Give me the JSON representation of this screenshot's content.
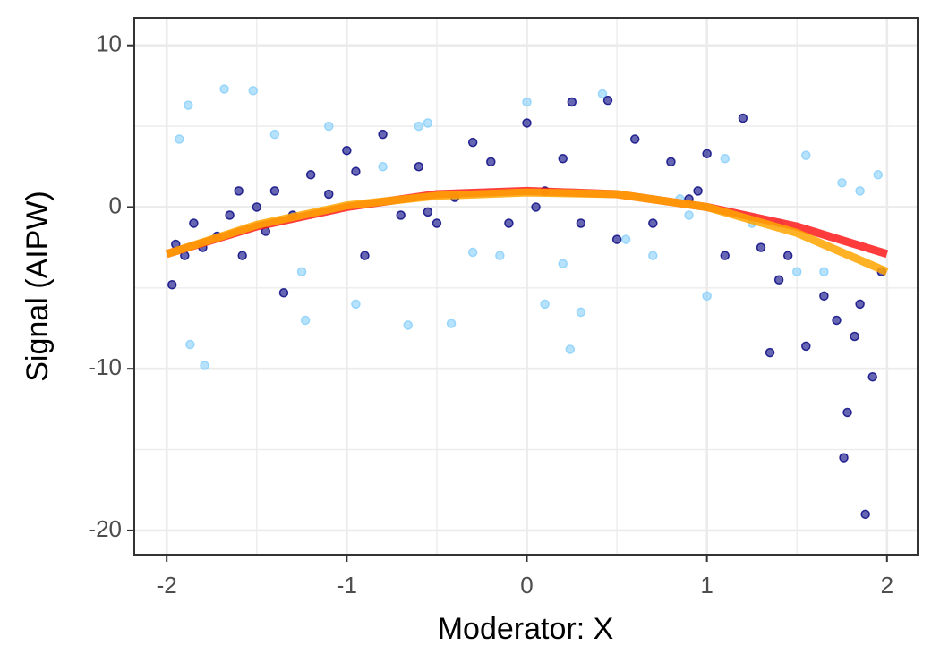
{
  "chart_data": {
    "type": "scatter",
    "xlabel": "Moderator: X",
    "ylabel": "Signal (AIPW)",
    "xlim": [
      -2.18,
      2.17
    ],
    "ylim": [
      -21.5,
      11.7
    ],
    "xticks": [
      -2,
      -1,
      0,
      1,
      2
    ],
    "yticks": [
      -20,
      -10,
      0,
      10
    ],
    "x_minor_grid": [
      -1.5,
      -0.5,
      0.5,
      1.5
    ],
    "y_minor_grid": [
      -15,
      -5,
      5
    ],
    "grid": true,
    "series": [
      {
        "type": "scatter",
        "color": "#87cefa",
        "x": [
          -1.93,
          -1.87,
          -1.79,
          -1.68,
          -1.52,
          -1.4,
          -1.23,
          -1.1,
          -0.95,
          -0.8,
          -0.66,
          -0.55,
          -0.42,
          -0.3,
          -0.15,
          0,
          0.1,
          0.24,
          0.3,
          0.42,
          0.55,
          0.7,
          0.85,
          1.0,
          1.1,
          1.25,
          1.4,
          1.55,
          1.65,
          1.75,
          1.85,
          1.95,
          -1.88,
          -1.25,
          -0.6,
          0.2,
          0.9,
          1.5
        ],
        "values": [
          4.2,
          -8.5,
          -9.8,
          7.3,
          7.2,
          4.5,
          -7,
          5,
          -6,
          2.5,
          -7.3,
          5.2,
          -7.2,
          -2.8,
          -3,
          6.5,
          -6,
          -8.8,
          -6.5,
          7,
          -2,
          -3,
          0.5,
          -5.5,
          3,
          -1,
          -1,
          3.2,
          -4,
          1.5,
          1,
          2,
          6.3,
          -4,
          5,
          -3.5,
          -0.5,
          -4
        ]
      },
      {
        "type": "scatter",
        "color": "#00007f",
        "x": [
          -1.97,
          -1.9,
          -1.85,
          -1.8,
          -1.72,
          -1.65,
          -1.58,
          -1.5,
          -1.45,
          -1.4,
          -1.3,
          -1.2,
          -1.1,
          -1.0,
          -0.9,
          -0.8,
          -0.7,
          -0.6,
          -0.5,
          -0.4,
          -0.3,
          -0.2,
          -0.1,
          0,
          0.1,
          0.2,
          0.25,
          0.3,
          0.45,
          0.6,
          0.7,
          0.8,
          0.9,
          1.0,
          1.1,
          1.2,
          1.3,
          1.35,
          1.45,
          1.55,
          1.65,
          1.72,
          1.76,
          1.78,
          1.82,
          1.88,
          1.92,
          1.97,
          -1.95,
          -1.6,
          -1.35,
          -0.95,
          -0.55,
          0.05,
          0.5,
          0.95,
          1.4,
          1.85
        ],
        "values": [
          -4.8,
          -3,
          -1,
          -2.5,
          -1.8,
          -0.5,
          -3,
          0,
          -1.5,
          1,
          -0.5,
          2,
          0.8,
          3.5,
          -3,
          4.5,
          -0.5,
          2.5,
          -1,
          0.6,
          4,
          2.8,
          -1,
          5.2,
          1,
          3,
          6.5,
          -1,
          6.6,
          4.2,
          -1,
          2.8,
          0.5,
          3.3,
          -3,
          5.5,
          -2.5,
          -9,
          -3,
          -8.6,
          -5.5,
          -7,
          -15.5,
          -12.7,
          -8,
          -19,
          -10.5,
          -4,
          -2.3,
          1,
          -5.3,
          2.2,
          -0.3,
          0,
          -2,
          1,
          -4.5,
          -6
        ]
      },
      {
        "type": "line",
        "color": "#ff1a1a",
        "x": [
          -2,
          -1.5,
          -1,
          -0.5,
          0,
          0.5,
          1,
          1.5,
          2
        ],
        "values": [
          -2.9,
          -1.2,
          0,
          0.8,
          1,
          0.8,
          0,
          -1.2,
          -2.9
        ]
      },
      {
        "type": "line",
        "color": "#ffa500",
        "x": [
          -2,
          -1.5,
          -1,
          -0.5,
          0,
          0.5,
          1,
          1.5,
          2
        ],
        "values": [
          -2.9,
          -1.1,
          0.1,
          0.7,
          0.9,
          0.8,
          0,
          -1.6,
          -4
        ]
      }
    ]
  }
}
